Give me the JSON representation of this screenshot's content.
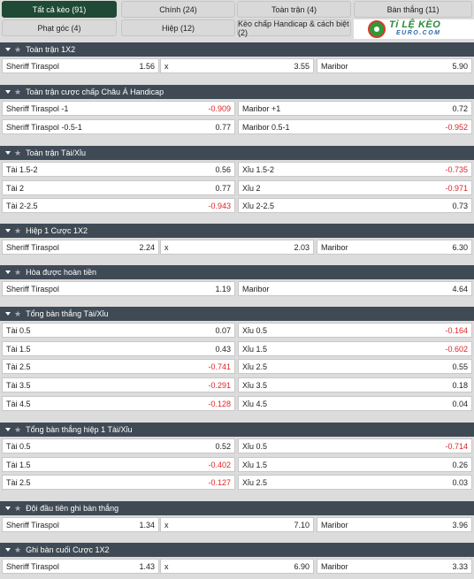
{
  "tabs": [
    {
      "label": "Tất cả kèo (91)",
      "active": true
    },
    {
      "label": "Chính (24)",
      "active": false
    },
    {
      "label": "Toàn trận (4)",
      "active": false
    },
    {
      "label": "Bàn thắng (11)",
      "active": false
    },
    {
      "label": "Phạt góc (4)",
      "active": false
    },
    {
      "label": "Hiệp (12)",
      "active": false
    },
    {
      "label": "Kèo chấp Handicap & cách biệt (2)",
      "active": false
    }
  ],
  "logo": {
    "main": "Tỉ LỆ KÈO",
    "sub": "EURO.COM"
  },
  "sections": [
    {
      "title": "Toàn trận 1X2",
      "cols": 3,
      "rows": [
        [
          {
            "label": "Sheriff Tiraspol",
            "odd": "1.56"
          },
          {
            "label": "x",
            "odd": "3.55"
          },
          {
            "label": "Maribor",
            "odd": "5.90"
          }
        ]
      ]
    },
    {
      "title": "Toàn trận cược chấp Châu Á Handicap",
      "cols": 2,
      "rows": [
        [
          {
            "label": "Sheriff Tiraspol -1",
            "odd": "-0.909"
          },
          {
            "label": "Maribor +1",
            "odd": "0.72"
          }
        ],
        [
          {
            "label": "Sheriff Tiraspol -0.5-1",
            "odd": "0.77"
          },
          {
            "label": "Maribor 0.5-1",
            "odd": "-0.952"
          }
        ]
      ]
    },
    {
      "title": "Toàn trận Tài/Xỉu",
      "cols": 2,
      "rows": [
        [
          {
            "label": "Tài 1.5-2",
            "odd": "0.56"
          },
          {
            "label": "Xỉu 1.5-2",
            "odd": "-0.735"
          }
        ],
        [
          {
            "label": "Tài 2",
            "odd": "0.77"
          },
          {
            "label": "Xỉu 2",
            "odd": "-0.971"
          }
        ],
        [
          {
            "label": "Tài 2-2.5",
            "odd": "-0.943"
          },
          {
            "label": "Xỉu 2-2.5",
            "odd": "0.73"
          }
        ]
      ]
    },
    {
      "title": "Hiệp 1 Cược 1X2",
      "cols": 3,
      "rows": [
        [
          {
            "label": "Sheriff Tiraspol",
            "odd": "2.24"
          },
          {
            "label": "x",
            "odd": "2.03"
          },
          {
            "label": "Maribor",
            "odd": "6.30"
          }
        ]
      ]
    },
    {
      "title": "Hòa được hoàn tiền",
      "cols": 2,
      "rows": [
        [
          {
            "label": "Sheriff Tiraspol",
            "odd": "1.19"
          },
          {
            "label": "Maribor",
            "odd": "4.64"
          }
        ]
      ]
    },
    {
      "title": "Tổng bàn thắng Tài/Xỉu",
      "cols": 2,
      "rows": [
        [
          {
            "label": "Tài 0.5",
            "odd": "0.07"
          },
          {
            "label": "Xỉu 0.5",
            "odd": "-0.164"
          }
        ],
        [
          {
            "label": "Tài 1.5",
            "odd": "0.43"
          },
          {
            "label": "Xỉu 1.5",
            "odd": "-0.602"
          }
        ],
        [
          {
            "label": "Tài 2.5",
            "odd": "-0.741"
          },
          {
            "label": "Xỉu 2.5",
            "odd": "0.55"
          }
        ],
        [
          {
            "label": "Tài 3.5",
            "odd": "-0.291"
          },
          {
            "label": "Xỉu 3.5",
            "odd": "0.18"
          }
        ],
        [
          {
            "label": "Tài 4.5",
            "odd": "-0.128"
          },
          {
            "label": "Xỉu 4.5",
            "odd": "0.04"
          }
        ]
      ]
    },
    {
      "title": "Tổng bàn thắng hiệp 1 Tài/Xỉu",
      "cols": 2,
      "rows": [
        [
          {
            "label": "Tài 0.5",
            "odd": "0.52"
          },
          {
            "label": "Xỉu 0.5",
            "odd": "-0.714"
          }
        ],
        [
          {
            "label": "Tài 1.5",
            "odd": "-0.402"
          },
          {
            "label": "Xỉu 1.5",
            "odd": "0.26"
          }
        ],
        [
          {
            "label": "Tài 2.5",
            "odd": "-0.127"
          },
          {
            "label": "Xỉu 2.5",
            "odd": "0.03"
          }
        ]
      ]
    },
    {
      "title": "Đội đầu tiên ghi bàn thắng",
      "cols": 3,
      "rows": [
        [
          {
            "label": "Sheriff Tiraspol",
            "odd": "1.34"
          },
          {
            "label": "x",
            "odd": "7.10"
          },
          {
            "label": "Maribor",
            "odd": "3.96"
          }
        ]
      ]
    },
    {
      "title": "Ghi bàn cuối Cược 1X2",
      "cols": 3,
      "rows": [
        [
          {
            "label": "Sheriff Tiraspol",
            "odd": "1.43"
          },
          {
            "label": "x",
            "odd": "6.90"
          },
          {
            "label": "Maribor",
            "odd": "3.33"
          }
        ]
      ]
    }
  ]
}
